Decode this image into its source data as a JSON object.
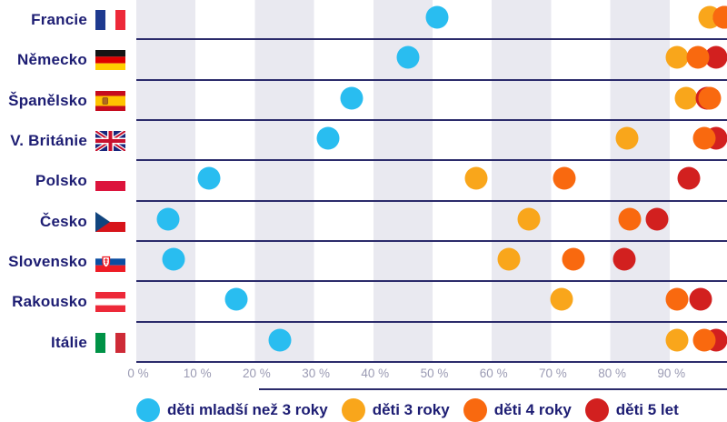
{
  "colors": {
    "under3": "#29bdf0",
    "age3": "#f9a61b",
    "age4": "#f9690f",
    "age5": "#d2201f",
    "country_label": "#1d1d73",
    "axis_text": "#9a9ab3",
    "stripe_gray": "#e9e9f0",
    "grid_line": "#2b2b6b"
  },
  "countries": [
    {
      "name": "Francie",
      "flag": "fr"
    },
    {
      "name": "Německo",
      "flag": "de"
    },
    {
      "name": "Španělsko",
      "flag": "es"
    },
    {
      "name": "V. Británie",
      "flag": "gb"
    },
    {
      "name": "Polsko",
      "flag": "pl"
    },
    {
      "name": "Česko",
      "flag": "cz"
    },
    {
      "name": "Slovensko",
      "flag": "sk"
    },
    {
      "name": "Rakousko",
      "flag": "at"
    },
    {
      "name": "Itálie",
      "flag": "it"
    }
  ],
  "legend": [
    {
      "label": "děti mladší než 3 roky",
      "color": "#29bdf0"
    },
    {
      "label": "děti 3 roky",
      "color": "#f9a61b"
    },
    {
      "label": "děti 4 roky",
      "color": "#f9690f"
    },
    {
      "label": "děti 5 let",
      "color": "#d2201f"
    }
  ],
  "chart_data": {
    "type": "scatter",
    "unit": "%",
    "xlim": [
      0,
      100
    ],
    "grid": "vertical-stripes",
    "legend_position": "bottom",
    "x_ticks": [
      "0 %",
      "10 %",
      "20 %",
      "30 %",
      "40 %",
      "50 %",
      "60 %",
      "70 %",
      "80 %",
      "90 %"
    ],
    "categories": [
      "Francie",
      "Německo",
      "Španělsko",
      "V. Británie",
      "Polsko",
      "Česko",
      "Slovensko",
      "Rakousko",
      "Itálie"
    ],
    "series": [
      {
        "name": "děti mladší než 3 roky",
        "color": "#29bdf0",
        "values": [
          50.5,
          45.5,
          36,
          32,
          12,
          5,
          6,
          16.5,
          24
        ]
      },
      {
        "name": "děti 3 roky",
        "color": "#f9a61b",
        "values": [
          96.5,
          91,
          92.5,
          82.5,
          57,
          66,
          62.5,
          71.5,
          91
        ]
      },
      {
        "name": "děti 4 roky",
        "color": "#f9690f",
        "values": [
          99,
          94.5,
          96.5,
          95.5,
          72,
          83,
          73.5,
          91,
          95.5
        ]
      },
      {
        "name": "děti 5 let",
        "color": "#d2201f",
        "values": [
          99,
          97.5,
          96,
          97.5,
          93,
          87.5,
          82,
          95,
          97.5
        ]
      }
    ]
  }
}
